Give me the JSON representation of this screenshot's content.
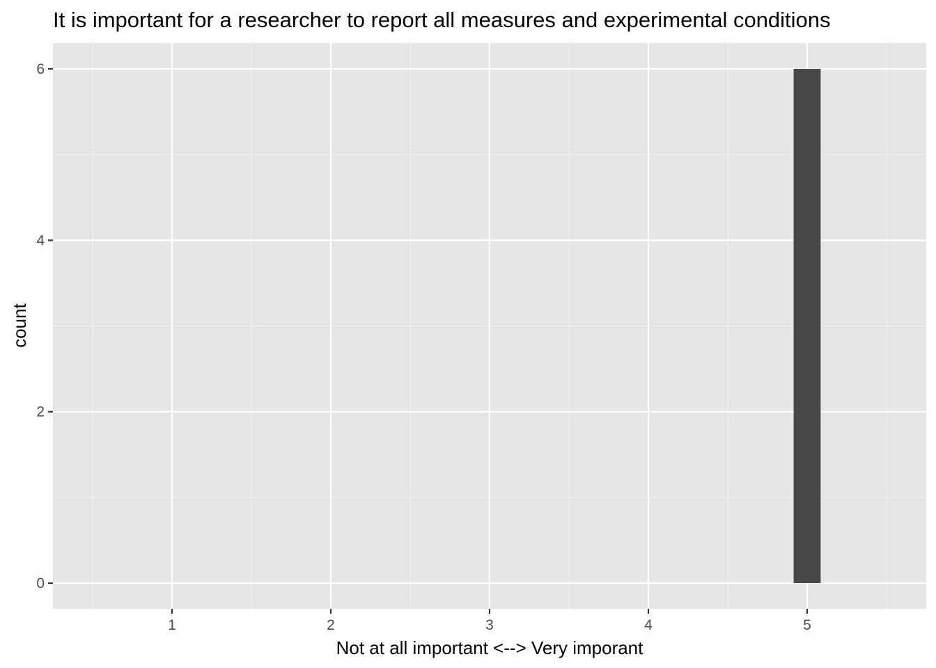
{
  "chart_data": {
    "type": "bar",
    "title": "It is important for a researcher to report all measures and experimental conditions",
    "xlabel": "Not at all important <--> Very imporant",
    "ylabel": "count",
    "x_ticks": [
      "1",
      "2",
      "3",
      "4",
      "5"
    ],
    "y_ticks": [
      "0",
      "2",
      "4",
      "6"
    ],
    "xlim": [
      0.25,
      5.75
    ],
    "ylim": [
      -0.3,
      6.3
    ],
    "bars": [
      {
        "x": 5,
        "value": 6
      }
    ],
    "bin_width": 0.17,
    "grid": true,
    "colors": {
      "panel_background": "#e5e5e5",
      "grid_major": "#ffffff",
      "grid_minor": "#f2f2f2",
      "bar_fill": "#474747",
      "tick_text": "#4d4d4d",
      "tick_mark": "#333333"
    }
  }
}
